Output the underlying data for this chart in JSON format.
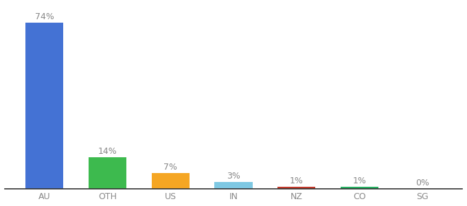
{
  "categories": [
    "AU",
    "OTH",
    "US",
    "IN",
    "NZ",
    "CO",
    "SG"
  ],
  "values": [
    74,
    14,
    7,
    3,
    1,
    1,
    0
  ],
  "labels": [
    "74%",
    "14%",
    "7%",
    "3%",
    "1%",
    "1%",
    "0%"
  ],
  "bar_colors": [
    "#4472d4",
    "#3dba4e",
    "#f5a623",
    "#7ec8e3",
    "#c0392b",
    "#27ae60",
    "#bdbdbd"
  ],
  "title": "",
  "label_fontsize": 9,
  "tick_fontsize": 9,
  "ylim": [
    0,
    82
  ],
  "background_color": "#ffffff",
  "bar_width": 0.6
}
